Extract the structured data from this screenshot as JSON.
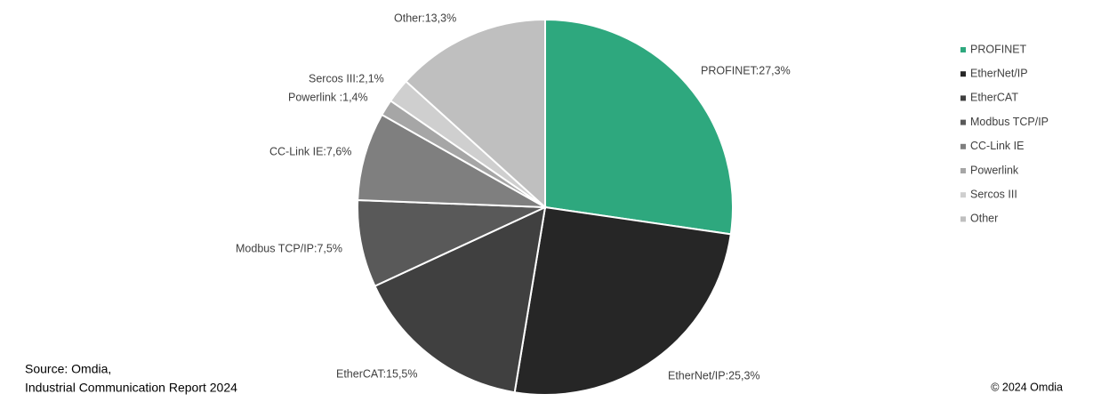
{
  "chart_data": {
    "type": "pie",
    "categories": [
      "PROFINET",
      "EtherNet/IP",
      "EtherCAT",
      "Modbus TCP/IP",
      "CC-Link IE",
      "Powerlink",
      "Sercos III",
      "Other"
    ],
    "values": [
      27.3,
      25.3,
      15.5,
      7.5,
      7.6,
      1.4,
      2.1,
      13.3
    ],
    "value_labels": [
      "PROFINET:27,3%",
      "EtherNet/IP:25,3%",
      "EtherCAT:15,5%",
      "Modbus TCP/IP:7,5%",
      "CC-Link IE:7,6%",
      "Powerlink :1,4%",
      "Sercos III:2,1%",
      "Other:13,3%"
    ],
    "colors": [
      "#2ea87e",
      "#262626",
      "#404040",
      "#595959",
      "#7f7f7f",
      "#a6a6a6",
      "#cfcfcf",
      "#bfbfbf"
    ],
    "legend": "right",
    "source": [
      "Source: Omdia,",
      "Industrial Communication Report 2024"
    ],
    "copyright": "© 2024 Omdia"
  }
}
